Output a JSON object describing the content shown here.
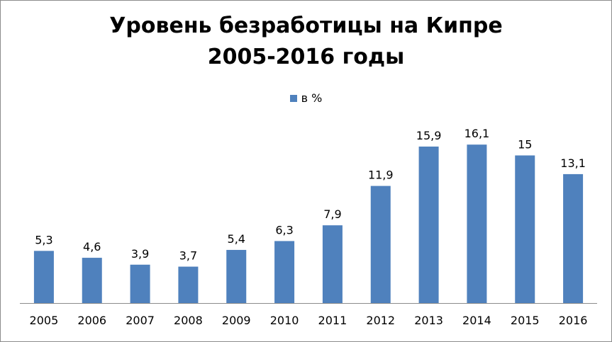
{
  "title_line1": "Уровень безработицы на Кипре",
  "title_line2": "2005-2016 годы",
  "colors": {
    "bar": "#4F81BD",
    "axis": "#8c8c8c"
  },
  "chart_data": {
    "type": "bar",
    "title": "Уровень безработицы на Кипре 2005-2016 годы",
    "categories": [
      "2005",
      "2006",
      "2007",
      "2008",
      "2009",
      "2010",
      "2011",
      "2012",
      "2013",
      "2014",
      "2015",
      "2016"
    ],
    "series": [
      {
        "name": "в %",
        "values": [
          5.3,
          4.6,
          3.9,
          3.7,
          5.4,
          6.3,
          7.9,
          11.9,
          15.9,
          16.1,
          15,
          13.1
        ],
        "labels": [
          "5,3",
          "4,6",
          "3,9",
          "3,7",
          "5,4",
          "6,3",
          "7,9",
          "11,9",
          "15,9",
          "16,1",
          "15",
          "13,1"
        ]
      }
    ],
    "ylim": [
      0,
      18
    ],
    "grid": false,
    "legend_position": "top"
  }
}
